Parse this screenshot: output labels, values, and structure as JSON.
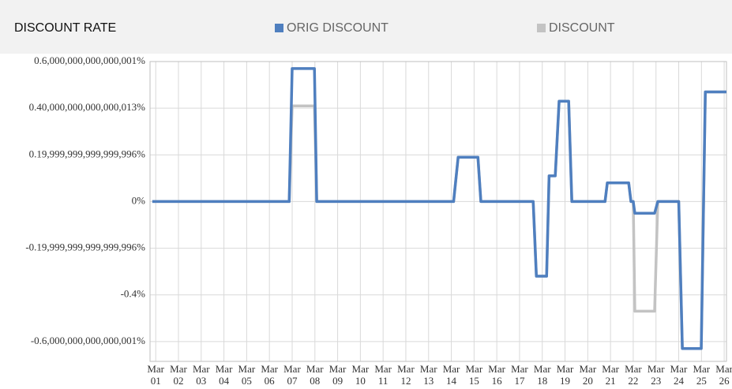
{
  "chart_data": {
    "type": "line",
    "title": "DISCOUNT RATE",
    "x": [
      0.85,
      6.87,
      7.0,
      7.98,
      8.08,
      14.1,
      14.3,
      15.17,
      15.3,
      17.6,
      17.74,
      18.19,
      18.3,
      18.57,
      18.74,
      19.16,
      19.3,
      20.76,
      20.86,
      21.8,
      21.9,
      22.0,
      22.07,
      22.94,
      23.08,
      24.0,
      24.16,
      24.99,
      25.17,
      26.1
    ],
    "series": [
      {
        "name": "DISCOUNT",
        "color": "#c3c3c3",
        "values": [
          0,
          0,
          0.41,
          0.41,
          0,
          0,
          0.19,
          0.19,
          0,
          0,
          -0.32,
          -0.32,
          0.11,
          0.11,
          0.43,
          0.43,
          0,
          0,
          0.08,
          0.08,
          0,
          0,
          -0.47,
          -0.47,
          0,
          0,
          -0.63,
          -0.63,
          0.47,
          0.47
        ]
      },
      {
        "name": "ORIG DISCOUNT",
        "color": "#4f7fbf",
        "values": [
          0,
          0,
          0.57,
          0.57,
          0,
          0,
          0.19,
          0.19,
          0,
          0,
          -0.32,
          -0.32,
          0.11,
          0.11,
          0.43,
          0.43,
          0,
          0,
          0.08,
          0.08,
          0,
          0,
          -0.05,
          -0.05,
          0,
          0,
          -0.63,
          -0.63,
          0.47,
          0.47
        ]
      }
    ],
    "legend_order": [
      "ORIG DISCOUNT",
      "DISCOUNT"
    ],
    "xlim": [
      0.75,
      26.1
    ],
    "xticks": [
      {
        "value": 1,
        "label": "Mar 01"
      },
      {
        "value": 2,
        "label": "Mar 02"
      },
      {
        "value": 3,
        "label": "Mar 03"
      },
      {
        "value": 4,
        "label": "Mar 04"
      },
      {
        "value": 5,
        "label": "Mar 05"
      },
      {
        "value": 6,
        "label": "Mar 06"
      },
      {
        "value": 7,
        "label": "Mar 07"
      },
      {
        "value": 8,
        "label": "Mar 08"
      },
      {
        "value": 9,
        "label": "Mar 09"
      },
      {
        "value": 10,
        "label": "Mar 10"
      },
      {
        "value": 11,
        "label": "Mar 11"
      },
      {
        "value": 12,
        "label": "Mar 12"
      },
      {
        "value": 13,
        "label": "Mar 13"
      },
      {
        "value": 14,
        "label": "Mar 14"
      },
      {
        "value": 15,
        "label": "Mar 15"
      },
      {
        "value": 16,
        "label": "Mar 16"
      },
      {
        "value": 17,
        "label": "Mar 17"
      },
      {
        "value": 18,
        "label": "Mar 18"
      },
      {
        "value": 19,
        "label": "Mar 19"
      },
      {
        "value": 20,
        "label": "Mar 20"
      },
      {
        "value": 21,
        "label": "Mar 21"
      },
      {
        "value": 22,
        "label": "Mar 22"
      },
      {
        "value": 23,
        "label": "Mar 23"
      },
      {
        "value": 24,
        "label": "Mar 24"
      },
      {
        "value": 25,
        "label": "Mar 25"
      },
      {
        "value": 26,
        "label": "Mar 26"
      }
    ],
    "ylim": [
      -0.685,
      0.6
    ],
    "yticks": [
      {
        "value": 0.6,
        "label": "0.6,000,000,000,000,001%"
      },
      {
        "value": 0.4,
        "label": "0.40,000,000,000,000,013%"
      },
      {
        "value": 0.2,
        "label": "0.19,999,999,999,999,996%"
      },
      {
        "value": 0,
        "label": "0%"
      },
      {
        "value": -0.2,
        "label": "-0.19,999,999,999,999,996%"
      },
      {
        "value": -0.4,
        "label": "-0.4%"
      },
      {
        "value": -0.6,
        "label": "-0.6,000,000,000,000,001%"
      }
    ],
    "grid": true
  }
}
